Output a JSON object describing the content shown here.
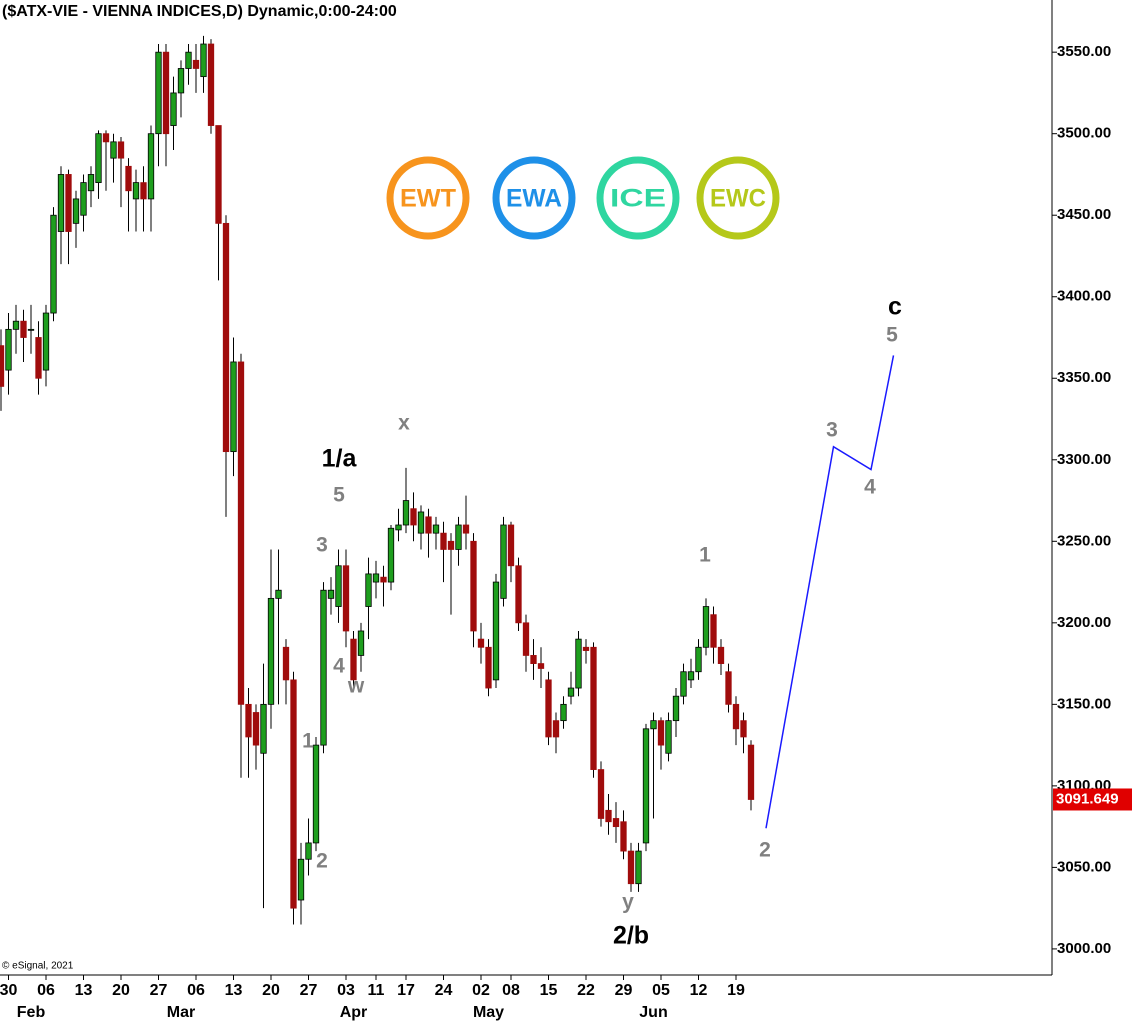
{
  "chart_data": {
    "type": "candlestick",
    "title": "($ATX-VIE - VIENNA INDICES,D) Dynamic,0:00-24:00",
    "copyright": "© eSignal, 2021",
    "series": [
      {
        "name": "$ATX-VIE",
        "up_color": "#1e9e1e",
        "down_color": "#a00c0c",
        "open": [
          3370,
          3355,
          3380,
          3385,
          3380,
          3375,
          3355,
          3390,
          3440,
          3475,
          3445,
          3450,
          3465,
          3470,
          3500,
          3485,
          3495,
          3480,
          3460,
          3470,
          3460,
          3500,
          3550,
          3505,
          3525,
          3540,
          3545,
          3535,
          3555,
          3505,
          3445,
          3305,
          3360,
          3150,
          3145,
          3120,
          3150,
          3215,
          3185,
          3165,
          3030,
          3055,
          3065,
          3125,
          3215,
          3210,
          3235,
          3190,
          3180,
          3210,
          3225,
          3228,
          3225,
          3257,
          3260,
          3270,
          3255,
          3265,
          3255,
          3255,
          3250,
          3245,
          3260,
          3250,
          3190,
          3185,
          3165,
          3215,
          3260,
          3235,
          3200,
          3180,
          3175,
          3165,
          3140,
          3140,
          3155,
          3160,
          3185,
          3185,
          3110,
          3085,
          3080,
          3078,
          3060,
          3040,
          3065,
          3135,
          3140,
          3120,
          3140,
          3155,
          3165,
          3170,
          3185,
          3205,
          3185,
          3170,
          3150,
          3140,
          3125
        ],
        "high": [
          3380,
          3390,
          3395,
          3392,
          3395,
          3385,
          3395,
          3455,
          3480,
          3478,
          3465,
          3475,
          3480,
          3502,
          3502,
          3500,
          3498,
          3485,
          3478,
          3480,
          3505,
          3555,
          3555,
          3535,
          3545,
          3555,
          3555,
          3560,
          3558,
          3505,
          3450,
          3375,
          3365,
          3160,
          3150,
          3175,
          3245,
          3245,
          3190,
          3170,
          3065,
          3080,
          3130,
          3225,
          3228,
          3245,
          3245,
          3195,
          3200,
          3240,
          3238,
          3235,
          3260,
          3270,
          3295,
          3280,
          3272,
          3270,
          3265,
          3262,
          3255,
          3265,
          3278,
          3255,
          3200,
          3190,
          3230,
          3265,
          3262,
          3240,
          3205,
          3190,
          3185,
          3170,
          3145,
          3155,
          3170,
          3195,
          3190,
          3188,
          3115,
          3095,
          3090,
          3085,
          3065,
          3065,
          3138,
          3145,
          3142,
          3145,
          3160,
          3175,
          3178,
          3190,
          3215,
          3210,
          3190,
          3175,
          3155,
          3145,
          3128
        ],
        "low": [
          3330,
          3340,
          3365,
          3360,
          3365,
          3340,
          3345,
          3385,
          3420,
          3420,
          3430,
          3440,
          3455,
          3460,
          3465,
          3470,
          3455,
          3440,
          3440,
          3440,
          3440,
          3480,
          3480,
          3490,
          3510,
          3530,
          3525,
          3525,
          3500,
          3410,
          3265,
          3290,
          3105,
          3105,
          3110,
          3025,
          3135,
          3150,
          3150,
          3015,
          3015,
          3045,
          3060,
          3120,
          3205,
          3200,
          3185,
          3160,
          3170,
          3190,
          3215,
          3210,
          3220,
          3250,
          3255,
          3250,
          3245,
          3240,
          3245,
          3225,
          3205,
          3235,
          3245,
          3185,
          3175,
          3155,
          3160,
          3210,
          3225,
          3195,
          3170,
          3165,
          3160,
          3125,
          3120,
          3135,
          3150,
          3155,
          3175,
          3105,
          3075,
          3070,
          3065,
          3055,
          3035,
          3035,
          3060,
          3080,
          3110,
          3115,
          3130,
          3150,
          3160,
          3165,
          3180,
          3175,
          3168,
          3145,
          3125,
          3120,
          3085
        ],
        "close": [
          3345,
          3380,
          3385,
          3375,
          3380,
          3350,
          3390,
          3450,
          3475,
          3440,
          3460,
          3470,
          3475,
          3500,
          3495,
          3495,
          3485,
          3465,
          3470,
          3460,
          3500,
          3550,
          3500,
          3525,
          3540,
          3550,
          3540,
          3555,
          3505,
          3445,
          3305,
          3360,
          3150,
          3130,
          3125,
          3150,
          3215,
          3220,
          3165,
          3025,
          3055,
          3065,
          3125,
          3220,
          3220,
          3235,
          3195,
          3165,
          3195,
          3230,
          3230,
          3225,
          3258,
          3260,
          3275,
          3260,
          3268,
          3255,
          3260,
          3245,
          3245,
          3260,
          3255,
          3195,
          3185,
          3160,
          3225,
          3260,
          3235,
          3200,
          3180,
          3175,
          3172,
          3130,
          3130,
          3150,
          3160,
          3190,
          3183,
          3110,
          3080,
          3078,
          3075,
          3060,
          3040,
          3060,
          3135,
          3140,
          3125,
          3140,
          3155,
          3170,
          3170,
          3185,
          3210,
          3185,
          3175,
          3150,
          3135,
          3130,
          3091.649
        ]
      },
      {
        "name": "projection",
        "color": "#1a1aff",
        "x": [
          102,
          111,
          116,
          119
        ],
        "values": [
          3074,
          3308,
          3294,
          3364
        ]
      }
    ],
    "last_price": 3091.649,
    "last_price_color": "#e00000",
    "xlim": [
      0,
      140
    ],
    "ylim": [
      2984,
      3582
    ],
    "xticks": [
      {
        "value": 1,
        "label": "30"
      },
      {
        "value": 6,
        "label": "06"
      },
      {
        "value": 11,
        "label": "13"
      },
      {
        "value": 16,
        "label": "20"
      },
      {
        "value": 21,
        "label": "27"
      },
      {
        "value": 26,
        "label": "06"
      },
      {
        "value": 31,
        "label": "13"
      },
      {
        "value": 36,
        "label": "20"
      },
      {
        "value": 41,
        "label": "27"
      },
      {
        "value": 46,
        "label": "03"
      },
      {
        "value": 50,
        "label": "11"
      },
      {
        "value": 54,
        "label": "17"
      },
      {
        "value": 59,
        "label": "24"
      },
      {
        "value": 64,
        "label": "02"
      },
      {
        "value": 68,
        "label": "08"
      },
      {
        "value": 73,
        "label": "15"
      },
      {
        "value": 78,
        "label": "22"
      },
      {
        "value": 83,
        "label": "29"
      },
      {
        "value": 88,
        "label": "05"
      },
      {
        "value": 93,
        "label": "12"
      },
      {
        "value": 98,
        "label": "19"
      }
    ],
    "month_ticks": [
      {
        "value": 4,
        "label": "Feb"
      },
      {
        "value": 24,
        "label": "Mar"
      },
      {
        "value": 47,
        "label": "Apr"
      },
      {
        "value": 65,
        "label": "May"
      },
      {
        "value": 87,
        "label": "Jun"
      }
    ],
    "yticks": [
      {
        "value": 3000,
        "label": "3000.00"
      },
      {
        "value": 3050,
        "label": "3050.00"
      },
      {
        "value": 3100,
        "label": "3100.00"
      },
      {
        "value": 3150,
        "label": "3150.00"
      },
      {
        "value": 3200,
        "label": "3200.00"
      },
      {
        "value": 3250,
        "label": "3250.00"
      },
      {
        "value": 3300,
        "label": "3300.00"
      },
      {
        "value": 3350,
        "label": "3350.00"
      },
      {
        "value": 3400,
        "label": "3400.00"
      },
      {
        "value": 3450,
        "label": "3450.00"
      },
      {
        "value": 3500,
        "label": "3500.00"
      },
      {
        "value": 3550,
        "label": "3550.00"
      }
    ],
    "annotations": [
      {
        "text": "5",
        "color": "#808080"
      },
      {
        "text": "3",
        "color": "#808080"
      },
      {
        "text": "4",
        "color": "#808080"
      },
      {
        "text": "w",
        "color": "#808080"
      },
      {
        "text": "1",
        "color": "#808080"
      },
      {
        "text": "2",
        "color": "#808080"
      },
      {
        "text": "x",
        "color": "#808080"
      },
      {
        "text": "1/a",
        "color": "#000000"
      },
      {
        "text": "y",
        "color": "#808080"
      },
      {
        "text": "2/b",
        "color": "#000000"
      },
      {
        "text": "1",
        "color": "#808080"
      },
      {
        "text": "2",
        "color": "#808080"
      },
      {
        "text": "3",
        "color": "#808080"
      },
      {
        "text": "4",
        "color": "#808080"
      },
      {
        "text": "5",
        "color": "#808080"
      },
      {
        "text": "c",
        "color": "#000000"
      }
    ],
    "logos": [
      {
        "text": "EWT",
        "color": "#f7941d"
      },
      {
        "text": "EWA",
        "color": "#1e90e8"
      },
      {
        "text": "ICE",
        "color": "#2fd6a0"
      },
      {
        "text": "EWC",
        "color": "#b5c81a"
      }
    ]
  }
}
